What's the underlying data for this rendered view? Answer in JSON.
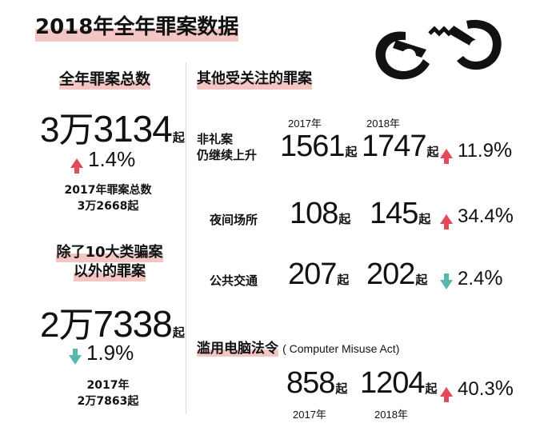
{
  "title": "2018年全年罪案数据",
  "left": {
    "total": {
      "heading": "全年罪案总数",
      "value_prefix": "3万",
      "value_main": "3134",
      "unit": "起",
      "change": "1.4",
      "change_dir": "up",
      "prev_label": "2017年罪案总数",
      "prev_value": "3万2668起"
    },
    "excluding": {
      "heading_line1": "除了10大类骗案",
      "heading_line2": "以外的罪案",
      "value_prefix": "2万",
      "value_main": "7338",
      "unit": "起",
      "change": "1.9",
      "change_dir": "down",
      "prev_label": "2017年",
      "prev_value": "2万7863起"
    }
  },
  "right": {
    "heading": "其他受关注的罪案",
    "year_2017": "2017年",
    "year_2018": "2018年",
    "rows": [
      {
        "label_line1": "非礼案",
        "label_line2": "仍继续上升",
        "v2017": "1561",
        "v2018": "1747",
        "unit": "起",
        "change": "11.9",
        "change_dir": "up"
      },
      {
        "label": "夜间场所",
        "v2017": "108",
        "v2018": "145",
        "unit": "起",
        "change": "34.4",
        "change_dir": "up"
      },
      {
        "label": "公共交通",
        "v2017": "207",
        "v2018": "202",
        "unit": "起",
        "change": "2.4",
        "change_dir": "down"
      }
    ],
    "cma": {
      "heading": "滥用电脑法令",
      "heading_en": "( Computer Misuse Act)",
      "v2017": "858",
      "v2018": "1204",
      "unit": "起",
      "change": "40.3",
      "change_dir": "up",
      "year_2017": "2017年",
      "year_2018": "2018年"
    }
  },
  "percent_sign": "%",
  "colors": {
    "highlight": "#f3c6c4",
    "up": "#e04a5a",
    "down": "#59b6ad",
    "divider": "#d9d9d9"
  },
  "icon": "handcuffs-icon"
}
